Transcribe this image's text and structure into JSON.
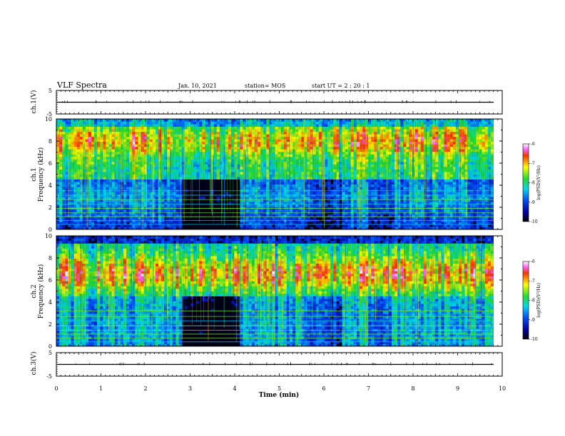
{
  "header": {
    "title": "VLF Spectra",
    "date": "Jan. 10, 2021",
    "station": "station= MOS",
    "start": "start UT =  2 : 20 : 1"
  },
  "chart_data": [
    {
      "type": "line",
      "name": "ch1-waveform",
      "ylabel": "ch.1(V)",
      "ylim": [
        -5,
        5
      ],
      "ytick_labels": [
        "5",
        "-5"
      ],
      "baseline_value": 0,
      "x": [
        0,
        10
      ],
      "xlim": [
        0,
        10
      ]
    },
    {
      "type": "heatmap",
      "name": "ch1-spectrogram",
      "ylabel": "ch.1\nFrequency (kHz)",
      "xlim": [
        0,
        10
      ],
      "ylim": [
        0,
        10
      ],
      "ytick_labels": [
        "0",
        "2",
        "4",
        "6",
        "8",
        "10"
      ],
      "colorbar": {
        "title": "log(PSD)(V²/Hz)",
        "range": [
          -10,
          -6
        ],
        "tick_labels": [
          "-6",
          "-7",
          "-8",
          "-9",
          "-10"
        ]
      },
      "note_bands_khz": [
        0.5,
        1.0,
        1.5,
        2.0,
        2.5,
        3.0,
        3.5
      ]
    },
    {
      "type": "heatmap",
      "name": "ch2-spectrogram",
      "ylabel": "ch.2\nFrequency (kHz)",
      "xlim": [
        0,
        10
      ],
      "ylim": [
        0,
        10
      ],
      "ytick_labels": [
        "0",
        "2",
        "4",
        "6",
        "8",
        "10"
      ],
      "colorbar": {
        "title": "log(PSD)(V²/Hz)",
        "range": [
          -10,
          -6
        ],
        "tick_labels": [
          "-6",
          "-7",
          "-8",
          "-9",
          "-10"
        ]
      }
    },
    {
      "type": "line",
      "name": "ch3-waveform",
      "ylabel": "ch.3(V)",
      "ylim": [
        -5,
        5
      ],
      "ytick_labels": [
        "5",
        "-5"
      ],
      "baseline_value": 0,
      "x": [
        0,
        10
      ],
      "xlim": [
        0,
        10
      ]
    }
  ],
  "xaxis": {
    "label": "Time  (min)",
    "tick_labels": [
      "0",
      "1",
      "2",
      "3",
      "4",
      "5",
      "6",
      "7",
      "8",
      "9",
      "10"
    ]
  }
}
